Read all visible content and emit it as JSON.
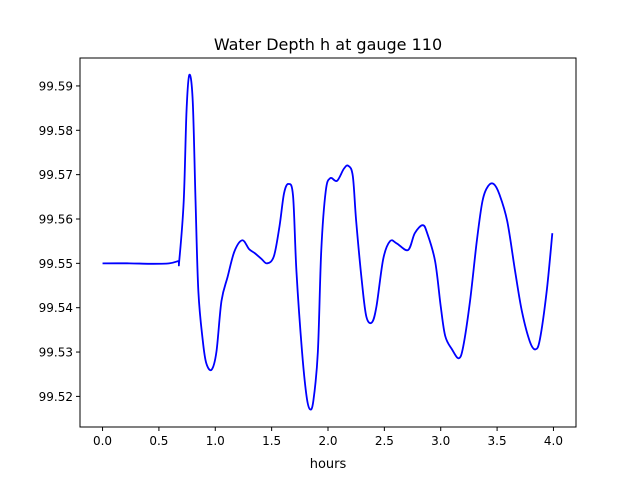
{
  "chart_data": {
    "type": "line",
    "title": "Water Depth h at gauge 110",
    "xlabel": "hours",
    "ylabel": "",
    "xlim": [
      -0.2,
      4.2
    ],
    "ylim": [
      99.5131,
      99.5963
    ],
    "xticks": [
      0.0,
      0.5,
      1.0,
      1.5,
      2.0,
      2.5,
      3.0,
      3.5,
      4.0
    ],
    "xtick_labels": [
      "0.0",
      "0.5",
      "1.0",
      "1.5",
      "2.0",
      "2.5",
      "3.0",
      "3.5",
      "4.0"
    ],
    "yticks": [
      99.52,
      99.53,
      99.54,
      99.55,
      99.56,
      99.57,
      99.58,
      99.59
    ],
    "ytick_labels": [
      "99.52",
      "99.53",
      "99.54",
      "99.55",
      "99.56",
      "99.57",
      "99.58",
      "99.59"
    ],
    "grid": false,
    "series": [
      {
        "name": "h",
        "color": "#0000ff",
        "x": [
          0,
          0.24,
          0.42,
          0.59,
          0.67,
          0.68,
          0.72,
          0.745,
          0.77,
          0.8,
          0.825,
          0.85,
          0.89,
          0.92,
          0.967,
          1.01,
          1.055,
          1.11,
          1.17,
          1.24,
          1.3,
          1.35,
          1.41,
          1.46,
          1.52,
          1.57,
          1.61,
          1.65,
          1.69,
          1.72,
          1.77,
          1.81,
          1.84,
          1.87,
          1.91,
          1.94,
          1.98,
          2.02,
          2.08,
          2.14,
          2.18,
          2.22,
          2.25,
          2.3,
          2.34,
          2.39,
          2.43,
          2.49,
          2.55,
          2.61,
          2.71,
          2.77,
          2.84,
          2.88,
          2.95,
          3.0,
          3.04,
          3.1,
          3.16,
          3.2,
          3.26,
          3.32,
          3.37,
          3.42,
          3.47,
          3.52,
          3.59,
          3.66,
          3.72,
          3.79,
          3.84,
          3.88,
          3.94,
          3.99
        ],
        "y": [
          99.55,
          99.55,
          99.5499,
          99.55,
          99.5505,
          99.5505,
          99.564,
          99.5844,
          99.5925,
          99.5866,
          99.564,
          99.5437,
          99.5324,
          99.5275,
          99.526,
          99.53,
          99.5415,
          99.547,
          99.5527,
          99.5552,
          99.5532,
          99.5523,
          99.551,
          99.55,
          99.5516,
          99.5584,
          99.5658,
          99.5679,
          99.5652,
          99.5482,
          99.53,
          99.52,
          99.5171,
          99.519,
          99.53,
          99.5528,
          99.5663,
          99.5692,
          99.5686,
          99.5713,
          99.572,
          99.5697,
          99.5595,
          99.546,
          99.538,
          99.5367,
          99.5403,
          99.551,
          99.555,
          99.5545,
          99.553,
          99.5568,
          99.5586,
          99.5568,
          99.5505,
          99.5403,
          99.5336,
          99.5306,
          99.5286,
          99.5313,
          99.5415,
          99.555,
          99.564,
          99.5674,
          99.5679,
          99.5656,
          99.5595,
          99.5482,
          99.5392,
          99.5324,
          99.5306,
          99.5329,
          99.5437,
          99.5568
        ]
      }
    ]
  }
}
